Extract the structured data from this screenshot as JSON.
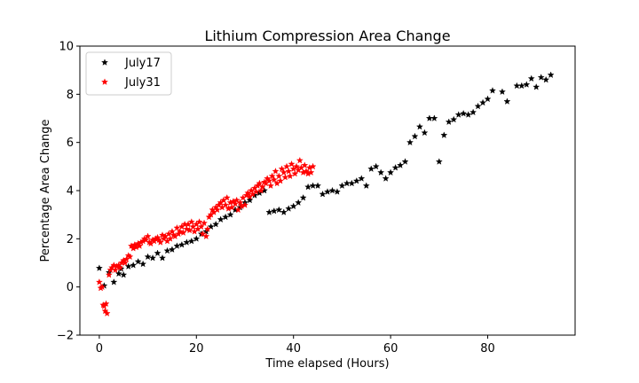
{
  "chart_data": {
    "type": "scatter",
    "title": "Lithium Compression Area Change",
    "xlabel": "Time elapsed (Hours)",
    "ylabel": "Percentage Area Change",
    "xlim": [
      -4,
      98
    ],
    "ylim": [
      -2,
      10
    ],
    "xticks": [
      0,
      20,
      40,
      60,
      80
    ],
    "yticks": [
      -2,
      0,
      2,
      4,
      6,
      8,
      10
    ],
    "grid": false,
    "legend_position": "top-left",
    "marker": "star",
    "series": [
      {
        "name": "July17",
        "color": "#000000",
        "points": [
          [
            0,
            0.78
          ],
          [
            1,
            0.05
          ],
          [
            2,
            0.6
          ],
          [
            3,
            0.2
          ],
          [
            4,
            0.55
          ],
          [
            4.5,
            0.75
          ],
          [
            5,
            0.5
          ],
          [
            6,
            0.85
          ],
          [
            7,
            0.9
          ],
          [
            8,
            1.05
          ],
          [
            9,
            0.95
          ],
          [
            10,
            1.25
          ],
          [
            11,
            1.2
          ],
          [
            12,
            1.4
          ],
          [
            13,
            1.2
          ],
          [
            14,
            1.5
          ],
          [
            15,
            1.55
          ],
          [
            16,
            1.7
          ],
          [
            17,
            1.75
          ],
          [
            18,
            1.85
          ],
          [
            19,
            1.9
          ],
          [
            20,
            2.0
          ],
          [
            21,
            2.2
          ],
          [
            22,
            2.3
          ],
          [
            23,
            2.5
          ],
          [
            24,
            2.6
          ],
          [
            25,
            2.8
          ],
          [
            26,
            2.9
          ],
          [
            27,
            3.0
          ],
          [
            28,
            3.2
          ],
          [
            29,
            3.3
          ],
          [
            30,
            3.5
          ],
          [
            31,
            3.6
          ],
          [
            32,
            3.8
          ],
          [
            33,
            3.9
          ],
          [
            34,
            4.0
          ],
          [
            35,
            3.1
          ],
          [
            36,
            3.15
          ],
          [
            37,
            3.2
          ],
          [
            38,
            3.1
          ],
          [
            39,
            3.25
          ],
          [
            40,
            3.35
          ],
          [
            41,
            3.5
          ],
          [
            42,
            3.7
          ],
          [
            43,
            4.15
          ],
          [
            44,
            4.2
          ],
          [
            45,
            4.2
          ],
          [
            46,
            3.85
          ],
          [
            47,
            3.95
          ],
          [
            48,
            4.0
          ],
          [
            49,
            3.95
          ],
          [
            50,
            4.2
          ],
          [
            51,
            4.3
          ],
          [
            52,
            4.3
          ],
          [
            53,
            4.4
          ],
          [
            54,
            4.5
          ],
          [
            55,
            4.2
          ],
          [
            56,
            4.9
          ],
          [
            57,
            5.0
          ],
          [
            58,
            4.75
          ],
          [
            59,
            4.5
          ],
          [
            60,
            4.75
          ],
          [
            61,
            4.95
          ],
          [
            62,
            5.05
          ],
          [
            63,
            5.2
          ],
          [
            64,
            6.0
          ],
          [
            65,
            6.25
          ],
          [
            66,
            6.65
          ],
          [
            67,
            6.4
          ],
          [
            68,
            7.0
          ],
          [
            69,
            7.0
          ],
          [
            70,
            5.2
          ],
          [
            71,
            6.3
          ],
          [
            72,
            6.85
          ],
          [
            73,
            6.95
          ],
          [
            74,
            7.15
          ],
          [
            75,
            7.2
          ],
          [
            76,
            7.15
          ],
          [
            77,
            7.25
          ],
          [
            78,
            7.5
          ],
          [
            79,
            7.65
          ],
          [
            80,
            7.8
          ],
          [
            81,
            8.15
          ],
          [
            83,
            8.1
          ],
          [
            84,
            7.7
          ],
          [
            86,
            8.35
          ],
          [
            87,
            8.35
          ],
          [
            88,
            8.4
          ],
          [
            89,
            8.65
          ],
          [
            90,
            8.3
          ],
          [
            91,
            8.7
          ],
          [
            92,
            8.6
          ],
          [
            93,
            8.8
          ]
        ]
      },
      {
        "name": "July31",
        "color": "#ff0000",
        "points": [
          [
            0,
            0.2
          ],
          [
            0.3,
            -0.05
          ],
          [
            0.6,
            0.0
          ],
          [
            0.8,
            -0.75
          ],
          [
            1.0,
            -0.8
          ],
          [
            1.2,
            -1.0
          ],
          [
            1.4,
            -0.7
          ],
          [
            1.6,
            -1.1
          ],
          [
            2,
            0.5
          ],
          [
            2.3,
            0.7
          ],
          [
            2.6,
            0.8
          ],
          [
            3,
            0.9
          ],
          [
            3.3,
            0.7
          ],
          [
            3.6,
            0.85
          ],
          [
            4,
            0.9
          ],
          [
            4.3,
            0.8
          ],
          [
            4.6,
            1.0
          ],
          [
            5,
            1.1
          ],
          [
            5.3,
            1.0
          ],
          [
            5.6,
            1.15
          ],
          [
            6,
            1.3
          ],
          [
            6.3,
            1.25
          ],
          [
            6.6,
            1.7
          ],
          [
            7,
            1.6
          ],
          [
            7.3,
            1.75
          ],
          [
            7.6,
            1.65
          ],
          [
            8,
            1.8
          ],
          [
            8.3,
            1.7
          ],
          [
            8.6,
            1.85
          ],
          [
            9,
            1.9
          ],
          [
            9.3,
            2.0
          ],
          [
            9.6,
            1.95
          ],
          [
            10,
            2.1
          ],
          [
            10.3,
            1.85
          ],
          [
            10.6,
            1.8
          ],
          [
            11,
            1.95
          ],
          [
            11.3,
            1.9
          ],
          [
            11.6,
            2.0
          ],
          [
            12,
            2.05
          ],
          [
            12.3,
            1.95
          ],
          [
            12.6,
            1.85
          ],
          [
            13,
            2.15
          ],
          [
            13.3,
            2.0
          ],
          [
            13.6,
            2.1
          ],
          [
            14,
            1.9
          ],
          [
            14.3,
            2.2
          ],
          [
            14.6,
            2.0
          ],
          [
            15,
            2.3
          ],
          [
            15.3,
            2.15
          ],
          [
            15.6,
            2.1
          ],
          [
            16,
            2.45
          ],
          [
            16.3,
            2.2
          ],
          [
            16.6,
            2.3
          ],
          [
            17,
            2.5
          ],
          [
            17.3,
            2.25
          ],
          [
            17.6,
            2.6
          ],
          [
            18,
            2.4
          ],
          [
            18.3,
            2.6
          ],
          [
            18.6,
            2.35
          ],
          [
            19,
            2.7
          ],
          [
            19.3,
            2.5
          ],
          [
            19.6,
            2.3
          ],
          [
            20,
            2.6
          ],
          [
            20.3,
            2.4
          ],
          [
            20.6,
            2.7
          ],
          [
            21,
            2.5
          ],
          [
            21.3,
            2.2
          ],
          [
            21.6,
            2.65
          ],
          [
            22,
            2.1
          ],
          [
            22.3,
            2.4
          ],
          [
            22.6,
            2.9
          ],
          [
            23,
            3.0
          ],
          [
            23.3,
            3.2
          ],
          [
            23.6,
            3.1
          ],
          [
            24,
            3.3
          ],
          [
            24.3,
            3.2
          ],
          [
            24.6,
            3.4
          ],
          [
            25,
            3.5
          ],
          [
            25.3,
            3.3
          ],
          [
            25.6,
            3.6
          ],
          [
            26,
            3.4
          ],
          [
            26.3,
            3.7
          ],
          [
            26.6,
            3.25
          ],
          [
            27,
            3.5
          ],
          [
            27.3,
            3.3
          ],
          [
            27.6,
            3.55
          ],
          [
            28,
            3.45
          ],
          [
            28.3,
            3.6
          ],
          [
            28.6,
            3.2
          ],
          [
            29,
            3.5
          ],
          [
            29.3,
            3.35
          ],
          [
            29.6,
            3.7
          ],
          [
            30,
            3.4
          ],
          [
            30.3,
            3.8
          ],
          [
            30.6,
            3.9
          ],
          [
            31,
            3.75
          ],
          [
            31.3,
            4.0
          ],
          [
            31.6,
            3.85
          ],
          [
            32,
            4.1
          ],
          [
            32.3,
            3.95
          ],
          [
            32.6,
            4.2
          ],
          [
            33,
            4.3
          ],
          [
            33.3,
            4.0
          ],
          [
            33.6,
            4.15
          ],
          [
            34,
            4.35
          ],
          [
            34.3,
            4.3
          ],
          [
            34.6,
            4.5
          ],
          [
            35,
            4.4
          ],
          [
            35.3,
            4.2
          ],
          [
            35.6,
            4.6
          ],
          [
            36,
            4.45
          ],
          [
            36.3,
            4.8
          ],
          [
            36.6,
            4.3
          ],
          [
            37,
            4.6
          ],
          [
            37.3,
            4.4
          ],
          [
            37.6,
            4.9
          ],
          [
            38,
            4.75
          ],
          [
            38.3,
            4.55
          ],
          [
            38.6,
            5.0
          ],
          [
            39,
            4.8
          ],
          [
            39.3,
            4.6
          ],
          [
            39.6,
            5.1
          ],
          [
            40,
            4.9
          ],
          [
            40.3,
            4.7
          ],
          [
            40.6,
            5.0
          ],
          [
            41,
            4.85
          ],
          [
            41.3,
            5.25
          ],
          [
            41.6,
            4.95
          ],
          [
            42,
            4.75
          ],
          [
            42.3,
            5.05
          ],
          [
            42.6,
            4.8
          ],
          [
            43,
            4.7
          ],
          [
            43.3,
            4.95
          ],
          [
            43.6,
            4.75
          ],
          [
            44,
            5.0
          ]
        ]
      }
    ]
  }
}
